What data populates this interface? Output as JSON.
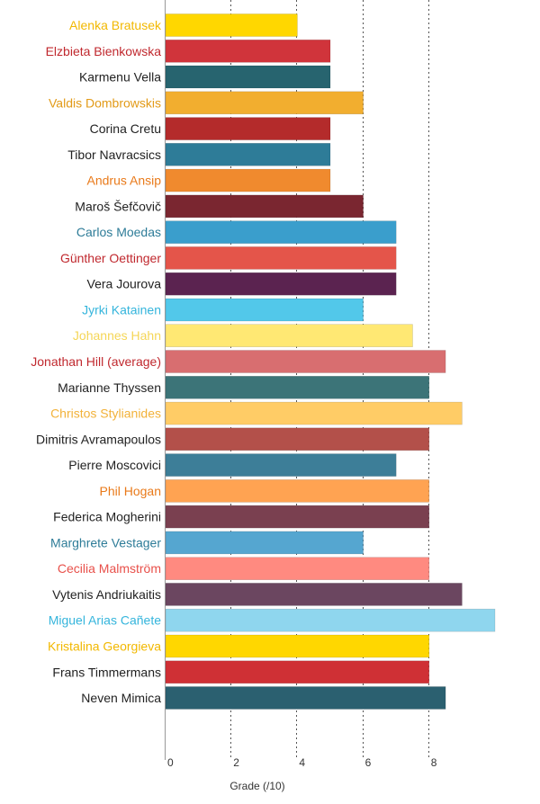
{
  "chart_data": {
    "type": "bar",
    "orientation": "horizontal",
    "categories": [
      "Alenka Bratusek",
      "Elzbieta Bienkowska",
      "Karmenu Vella",
      "Valdis Dombrowskis",
      "Corina Cretu",
      "Tibor Navracsics",
      "Andrus Ansip",
      "Maroš Šefčovič",
      "Carlos Moedas",
      "Günther Oettinger",
      "Vera Jourova",
      "Jyrki Katainen",
      "Johannes Hahn",
      "Jonathan Hill (average)",
      "Marianne Thyssen",
      "Christos Stylianides",
      "Dimitris Avramapoulos",
      "Pierre Moscovici",
      "Phil Hogan",
      "Federica Mogherini",
      "Marghrete Vestager",
      "Cecilia Malmström",
      "Vytenis Andriukaitis",
      "Miguel Arias Cañete",
      "Kristalina Georgieva",
      "Frans Timmermans",
      "Neven Mimica"
    ],
    "values": [
      4,
      5,
      5,
      6,
      5,
      5,
      5,
      6,
      7,
      7,
      7,
      6,
      7.5,
      8.5,
      8,
      9,
      8,
      7,
      8,
      8,
      6,
      8,
      9,
      10,
      8,
      8,
      8.5
    ],
    "bar_colors": [
      "#FFD700",
      "#D0343B",
      "#27646F",
      "#F2AE2F",
      "#B42B2B",
      "#2E7C98",
      "#F08A2E",
      "#7A2630",
      "#3A9ECC",
      "#E4554A",
      "#5B2350",
      "#52C8EA",
      "#FFE873",
      "#D86E70",
      "#3C7478",
      "#FFCC66",
      "#B3504A",
      "#3D7E98",
      "#FFA352",
      "#7A4050",
      "#55A6D0",
      "#FF8A80",
      "#6B4660",
      "#8FD6EE",
      "#FFD700",
      "#CF3035",
      "#2B6070"
    ],
    "label_colors": [
      "#F2B800",
      "#C0282E",
      "#222222",
      "#E29A17",
      "#222222",
      "#222222",
      "#E97A1A",
      "#222222",
      "#2E7C98",
      "#C0282E",
      "#222222",
      "#35B5DC",
      "#F5D657",
      "#C0282E",
      "#222222",
      "#F2B23A",
      "#222222",
      "#222222",
      "#E97A1A",
      "#222222",
      "#2E7C98",
      "#E8504A",
      "#222222",
      "#35B5DC",
      "#F2B800",
      "#222222",
      "#222222"
    ],
    "xticks": [
      "0",
      "2",
      "4",
      "6",
      "8"
    ],
    "xlabel": "Grade (/10)",
    "ylabel": "",
    "title": "",
    "xlim": [
      0,
      10
    ],
    "grid": true
  }
}
